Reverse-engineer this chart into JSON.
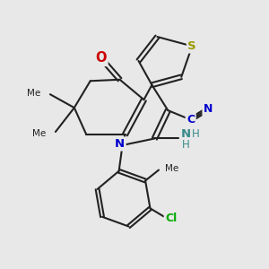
{
  "bg_color": "#e8e8e8",
  "bond_color": "#222222",
  "lw": 1.5,
  "dbl_off": 0.07,
  "atom_colors": {
    "S": "#999900",
    "N": "#0000cc",
    "O": "#cc0000",
    "Cl": "#00aa00",
    "NH": "#3a8a8a",
    "CN_blue": "#0000cc"
  },
  "figsize": [
    3.0,
    3.0
  ],
  "dpi": 100,
  "xlim": [
    0,
    10
  ],
  "ylim": [
    0,
    10
  ]
}
